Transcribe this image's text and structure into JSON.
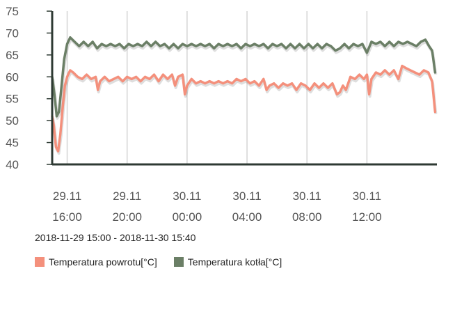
{
  "chart_data": {
    "type": "line",
    "range_label": "2018-11-29 15:00 - 2018-11-30 15:40",
    "ylim": [
      40,
      75
    ],
    "yticks": [
      40,
      45,
      50,
      55,
      60,
      65,
      70,
      75
    ],
    "xlim": [
      -1.0,
      24.67
    ],
    "xticks": [
      {
        "value": 0,
        "line1": "29.11",
        "line2": "16:00"
      },
      {
        "value": 4,
        "line1": "29.11",
        "line2": "20:00"
      },
      {
        "value": 8,
        "line1": "30.11",
        "line2": "00:00"
      },
      {
        "value": 12,
        "line1": "30.11",
        "line2": "04:00"
      },
      {
        "value": 16,
        "line1": "30.11",
        "line2": "08:00"
      },
      {
        "value": 20,
        "line1": "30.11",
        "line2": "12:00"
      }
    ],
    "grid": true,
    "legend_position": "bottom-left",
    "series": [
      {
        "name": "Temperatura powrotu[°C]",
        "color": "#f4907c",
        "points": [
          [
            -1.0,
            51
          ],
          [
            -0.9,
            49
          ],
          [
            -0.75,
            44
          ],
          [
            -0.6,
            43
          ],
          [
            -0.45,
            47
          ],
          [
            -0.3,
            53
          ],
          [
            -0.15,
            58
          ],
          [
            0.0,
            60
          ],
          [
            0.2,
            61.5
          ],
          [
            0.4,
            61
          ],
          [
            0.7,
            60
          ],
          [
            1.0,
            59.5
          ],
          [
            1.3,
            60.5
          ],
          [
            1.6,
            59.5
          ],
          [
            1.9,
            60
          ],
          [
            2.05,
            57
          ],
          [
            2.2,
            59
          ],
          [
            2.5,
            60
          ],
          [
            2.8,
            59
          ],
          [
            3.1,
            59.5
          ],
          [
            3.4,
            60
          ],
          [
            3.7,
            59
          ],
          [
            4.0,
            60
          ],
          [
            4.3,
            59.5
          ],
          [
            4.6,
            60
          ],
          [
            4.9,
            59
          ],
          [
            5.2,
            60
          ],
          [
            5.5,
            59.5
          ],
          [
            5.8,
            60.5
          ],
          [
            6.1,
            59
          ],
          [
            6.4,
            60.5
          ],
          [
            6.7,
            59.5
          ],
          [
            7.0,
            60.5
          ],
          [
            7.2,
            58
          ],
          [
            7.4,
            60
          ],
          [
            7.7,
            60.5
          ],
          [
            7.85,
            56
          ],
          [
            8.0,
            58
          ],
          [
            8.3,
            59.5
          ],
          [
            8.6,
            58.5
          ],
          [
            8.9,
            59
          ],
          [
            9.2,
            58.5
          ],
          [
            9.5,
            59
          ],
          [
            9.8,
            58.5
          ],
          [
            10.1,
            59
          ],
          [
            10.4,
            58.5
          ],
          [
            10.7,
            59
          ],
          [
            11.0,
            58.5
          ],
          [
            11.3,
            59.5
          ],
          [
            11.6,
            59
          ],
          [
            11.9,
            59.5
          ],
          [
            12.2,
            58.5
          ],
          [
            12.5,
            59
          ],
          [
            12.8,
            58
          ],
          [
            13.1,
            59.5
          ],
          [
            13.3,
            57
          ],
          [
            13.5,
            58
          ],
          [
            13.8,
            58.5
          ],
          [
            14.1,
            57.5
          ],
          [
            14.4,
            58.5
          ],
          [
            14.7,
            58
          ],
          [
            15.0,
            58.5
          ],
          [
            15.3,
            57
          ],
          [
            15.6,
            58.5
          ],
          [
            15.9,
            58
          ],
          [
            16.2,
            57
          ],
          [
            16.5,
            58.5
          ],
          [
            16.8,
            57.5
          ],
          [
            17.1,
            58.5
          ],
          [
            17.4,
            57.5
          ],
          [
            17.7,
            58.5
          ],
          [
            18.0,
            56
          ],
          [
            18.2,
            56.5
          ],
          [
            18.4,
            58
          ],
          [
            18.6,
            57
          ],
          [
            18.9,
            60
          ],
          [
            19.2,
            59.5
          ],
          [
            19.5,
            60.5
          ],
          [
            19.8,
            59.5
          ],
          [
            20.0,
            60.5
          ],
          [
            20.15,
            56
          ],
          [
            20.3,
            59.5
          ],
          [
            20.6,
            61
          ],
          [
            20.9,
            60.5
          ],
          [
            21.2,
            61.5
          ],
          [
            21.5,
            60.5
          ],
          [
            21.8,
            61.5
          ],
          [
            22.1,
            59.5
          ],
          [
            22.35,
            62.5
          ],
          [
            22.6,
            62
          ],
          [
            22.9,
            61.5
          ],
          [
            23.2,
            61
          ],
          [
            23.5,
            60.5
          ],
          [
            23.8,
            61.5
          ],
          [
            24.1,
            61
          ],
          [
            24.35,
            59
          ],
          [
            24.55,
            52
          ]
        ]
      },
      {
        "name": "Temperatura kotła[°C]",
        "color": "#6b7f66",
        "points": [
          [
            -1.0,
            60
          ],
          [
            -0.85,
            56
          ],
          [
            -0.7,
            51
          ],
          [
            -0.55,
            52
          ],
          [
            -0.4,
            57
          ],
          [
            -0.2,
            64
          ],
          [
            0.0,
            67.5
          ],
          [
            0.2,
            69
          ],
          [
            0.5,
            68
          ],
          [
            0.8,
            67
          ],
          [
            1.1,
            68
          ],
          [
            1.4,
            67
          ],
          [
            1.7,
            68
          ],
          [
            2.0,
            66.5
          ],
          [
            2.3,
            67.5
          ],
          [
            2.6,
            67
          ],
          [
            2.9,
            67.5
          ],
          [
            3.2,
            67
          ],
          [
            3.5,
            67.5
          ],
          [
            3.8,
            66.5
          ],
          [
            4.1,
            67.5
          ],
          [
            4.4,
            67
          ],
          [
            4.7,
            67.5
          ],
          [
            5.0,
            67
          ],
          [
            5.3,
            68
          ],
          [
            5.6,
            67
          ],
          [
            5.9,
            68
          ],
          [
            6.2,
            67
          ],
          [
            6.5,
            67.5
          ],
          [
            6.8,
            66.5
          ],
          [
            7.1,
            67.5
          ],
          [
            7.4,
            66.5
          ],
          [
            7.7,
            67.5
          ],
          [
            8.0,
            67
          ],
          [
            8.3,
            67.5
          ],
          [
            8.6,
            67
          ],
          [
            8.9,
            67.5
          ],
          [
            9.2,
            67
          ],
          [
            9.5,
            67.5
          ],
          [
            9.8,
            66.5
          ],
          [
            10.1,
            67.5
          ],
          [
            10.4,
            67
          ],
          [
            10.7,
            67.5
          ],
          [
            11.0,
            67
          ],
          [
            11.3,
            67.5
          ],
          [
            11.6,
            66.5
          ],
          [
            11.9,
            67.5
          ],
          [
            12.2,
            67
          ],
          [
            12.5,
            67.5
          ],
          [
            12.8,
            67
          ],
          [
            13.1,
            67.5
          ],
          [
            13.4,
            66.5
          ],
          [
            13.7,
            67.5
          ],
          [
            14.0,
            67
          ],
          [
            14.3,
            67.5
          ],
          [
            14.6,
            66.5
          ],
          [
            14.9,
            67.5
          ],
          [
            15.2,
            66.5
          ],
          [
            15.5,
            67.5
          ],
          [
            15.8,
            66.5
          ],
          [
            16.1,
            67.5
          ],
          [
            16.4,
            66.5
          ],
          [
            16.7,
            67.5
          ],
          [
            17.0,
            66.5
          ],
          [
            17.3,
            67.5
          ],
          [
            17.6,
            67
          ],
          [
            17.9,
            66
          ],
          [
            18.2,
            66.5
          ],
          [
            18.5,
            67.5
          ],
          [
            18.8,
            66.5
          ],
          [
            19.1,
            67.5
          ],
          [
            19.4,
            67
          ],
          [
            19.7,
            67.5
          ],
          [
            20.0,
            65.5
          ],
          [
            20.3,
            68
          ],
          [
            20.6,
            67.5
          ],
          [
            20.9,
            68
          ],
          [
            21.2,
            67
          ],
          [
            21.5,
            68
          ],
          [
            21.8,
            67
          ],
          [
            22.1,
            68
          ],
          [
            22.4,
            67.5
          ],
          [
            22.7,
            68
          ],
          [
            23.0,
            67.5
          ],
          [
            23.3,
            67
          ],
          [
            23.6,
            68
          ],
          [
            23.9,
            68.5
          ],
          [
            24.15,
            67
          ],
          [
            24.35,
            66
          ],
          [
            24.55,
            61
          ]
        ]
      }
    ]
  }
}
